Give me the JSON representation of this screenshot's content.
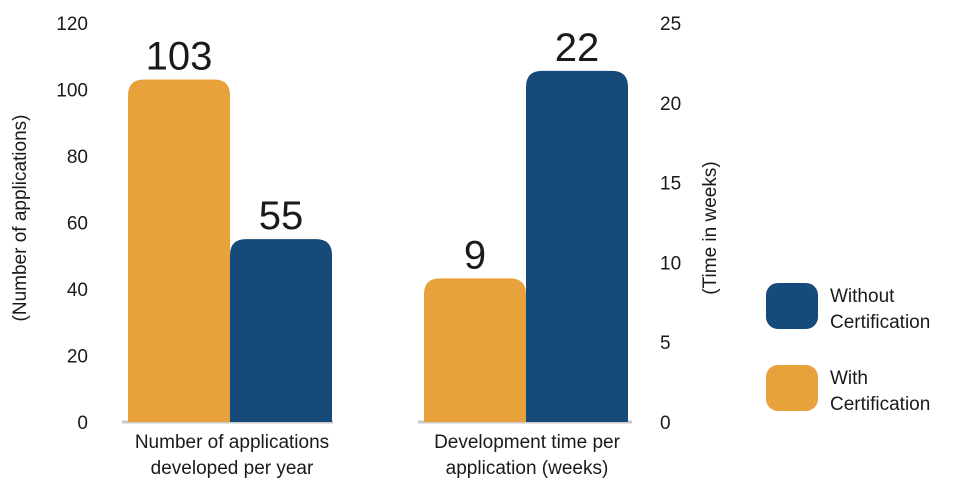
{
  "chart_data": [
    {
      "type": "bar",
      "categories": [
        "Number of applications developed per year"
      ],
      "category_lines": [
        [
          "Number of applications",
          "developed per year"
        ]
      ],
      "series": [
        {
          "name": "With Certification",
          "values": [
            103
          ]
        },
        {
          "name": "Without Certification",
          "values": [
            55
          ]
        }
      ],
      "ylabel": "(Number of applications)",
      "ylim": [
        0,
        120
      ],
      "yticks": [
        0,
        20,
        40,
        60,
        80,
        100,
        120
      ],
      "grid": false
    },
    {
      "type": "bar",
      "categories": [
        "Development time per application (weeks)"
      ],
      "category_lines": [
        [
          "Development time per",
          "application (weeks)"
        ]
      ],
      "series": [
        {
          "name": "With Certification",
          "values": [
            9
          ]
        },
        {
          "name": "Without Certification",
          "values": [
            22
          ]
        }
      ],
      "ylabel": "(Time in weeks)",
      "ylim": [
        0,
        25
      ],
      "yticks": [
        0,
        5,
        10,
        15,
        20,
        25
      ],
      "grid": false
    }
  ],
  "legend": {
    "placement": "right",
    "items": [
      {
        "lines": [
          "Without",
          "Certification"
        ],
        "color": "#164a7b"
      },
      {
        "lines": [
          "With",
          "Certification"
        ],
        "color": "#e8a23b"
      }
    ]
  },
  "colors": {
    "with_certification": "#e8a23b",
    "without_certification": "#164a7b",
    "baseline": "#c8c8c8"
  }
}
